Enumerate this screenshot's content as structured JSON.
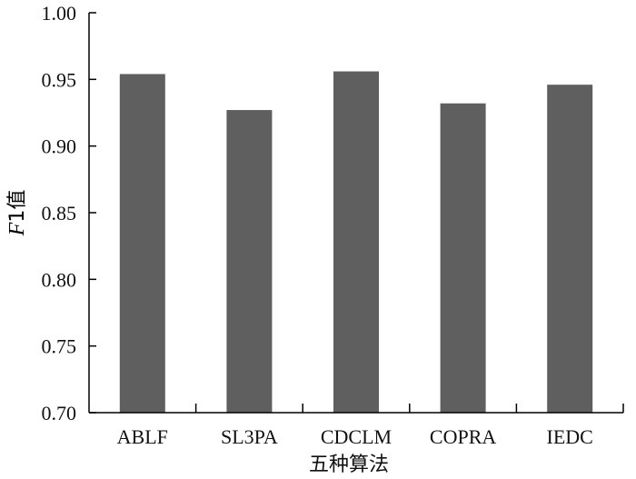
{
  "chart_data": {
    "type": "bar",
    "categories": [
      "ABLF",
      "SL3PA",
      "CDCLM",
      "COPRA",
      "IEDC"
    ],
    "values": [
      0.954,
      0.927,
      0.956,
      0.932,
      0.946
    ],
    "xlabel": "五种算法",
    "ylabel": {
      "italic": "F",
      "rest": "1值"
    },
    "ylim": [
      0.7,
      1.0
    ],
    "yticks": [
      "0.70",
      "0.75",
      "0.80",
      "0.85",
      "0.90",
      "0.95",
      "1.00"
    ],
    "bar_color": "#5f5f5f",
    "grid": false
  }
}
